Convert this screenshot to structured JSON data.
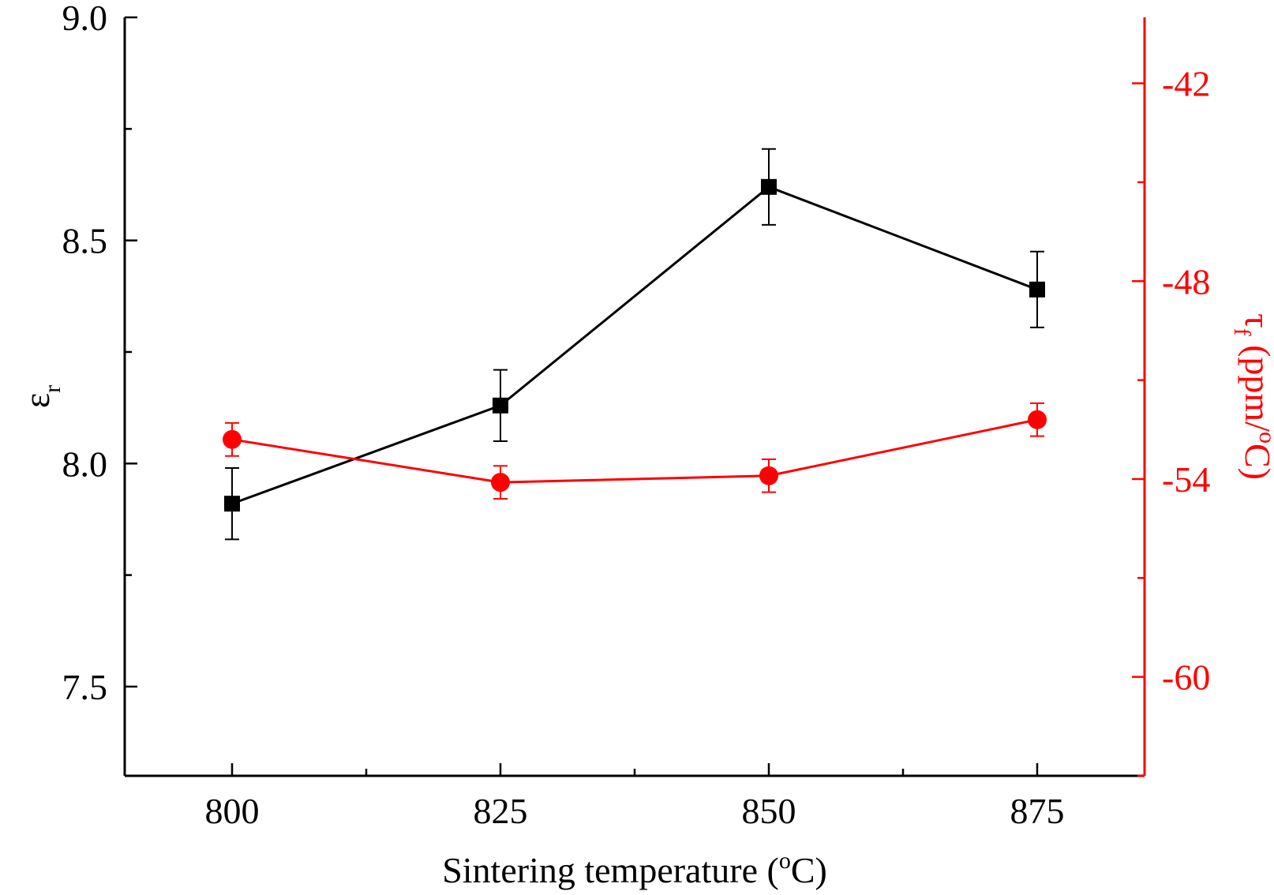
{
  "chart_data": {
    "type": "line",
    "x": [
      800,
      825,
      850,
      875
    ],
    "x_ticks": [
      "800",
      "825",
      "850",
      "875"
    ],
    "xlim": [
      790,
      885
    ],
    "xlabel": {
      "main": "Sintering temperature (",
      "sup": "o",
      "tail": "C)"
    },
    "left_axis": {
      "label_symbol": "ε",
      "label_sub": "r",
      "ylim": [
        7.3,
        9.0
      ],
      "ticks": [
        7.5,
        8.0,
        8.5,
        9.0
      ],
      "tick_labels": [
        "7.5",
        "8.0",
        "8.5",
        "9.0"
      ],
      "minor_ticks": [
        7.75,
        8.25,
        8.75
      ],
      "color": "#000000"
    },
    "right_axis": {
      "label_symbol": "τ",
      "label_sub": "f",
      "label_rest": " (ppm/",
      "label_sup": "o",
      "label_tail": "C)",
      "ylim": [
        -63,
        -40
      ],
      "ticks": [
        -42,
        -48,
        -54,
        -60
      ],
      "tick_labels": [
        "-42",
        "-48",
        "-54",
        "-60"
      ],
      "minor_ticks": [
        -45,
        -51,
        -57,
        -63
      ],
      "color": "#ff0000"
    },
    "series": [
      {
        "axis": "left",
        "marker": "square",
        "color": "#000000",
        "values": [
          7.91,
          8.13,
          8.62,
          8.39
        ],
        "errors": [
          0.08,
          0.08,
          0.085,
          0.085
        ]
      },
      {
        "axis": "right",
        "marker": "circle",
        "color": "#ff0000",
        "values": [
          -52.8,
          -54.1,
          -53.9,
          -52.2
        ],
        "errors": [
          0.5,
          0.5,
          0.5,
          0.5
        ]
      }
    ],
    "grid": false,
    "legend": "none"
  }
}
